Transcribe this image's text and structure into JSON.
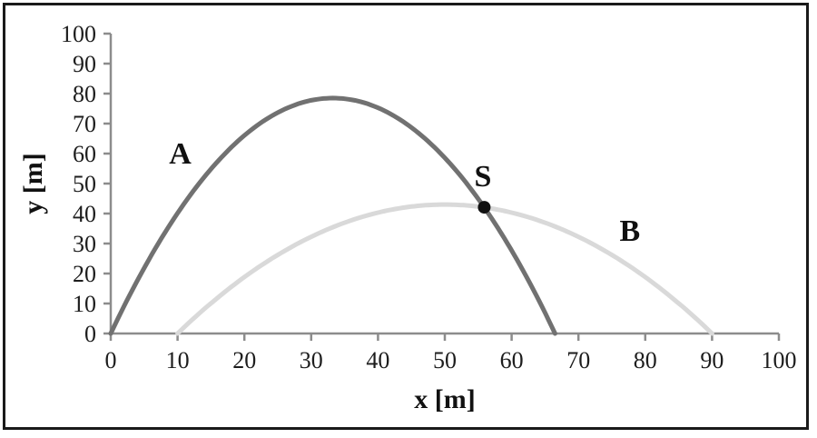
{
  "figure": {
    "background_color": "#ffffff",
    "frame_border_color": "#1a1a1a"
  },
  "chart_data": {
    "type": "line",
    "title": "",
    "xlabel": "x [m]",
    "ylabel": "y [m]",
    "xlim": [
      0,
      100
    ],
    "ylim": [
      0,
      100
    ],
    "x_ticks": [
      0,
      10,
      20,
      30,
      40,
      50,
      60,
      70,
      80,
      90,
      100
    ],
    "y_ticks": [
      0,
      10,
      20,
      30,
      40,
      50,
      60,
      70,
      80,
      90,
      100
    ],
    "grid": false,
    "legend": "none",
    "axis_color": "#8c8c8c",
    "tick_label_color": "#1d1d1d",
    "series": [
      {
        "name": "A",
        "color": "#717171",
        "stroke_width": 5,
        "curve": "parabola",
        "launch_x": 0,
        "land_x": 66.5,
        "apex_x": 33.25,
        "apex_y": 78.5,
        "points": [
          [
            0,
            0
          ],
          [
            5,
            21.8
          ],
          [
            10,
            40.1
          ],
          [
            15,
            54.9
          ],
          [
            20,
            66.0
          ],
          [
            25,
            73.7
          ],
          [
            30,
            77.7
          ],
          [
            33.25,
            78.5
          ],
          [
            35,
            78.3
          ],
          [
            40,
            75.3
          ],
          [
            45,
            68.7
          ],
          [
            50,
            58.6
          ],
          [
            55,
            44.9
          ],
          [
            60,
            27.7
          ],
          [
            65,
            6.9
          ],
          [
            66.5,
            0
          ]
        ]
      },
      {
        "name": "B",
        "color": "#d9d9d9",
        "stroke_width": 5,
        "curve": "parabola",
        "launch_x": 10,
        "land_x": 90,
        "apex_x": 50,
        "apex_y": 43,
        "points": [
          [
            10,
            0
          ],
          [
            15,
            10.1
          ],
          [
            20,
            18.8
          ],
          [
            25,
            26.2
          ],
          [
            30,
            32.3
          ],
          [
            35,
            37.0
          ],
          [
            40,
            40.3
          ],
          [
            45,
            42.3
          ],
          [
            50,
            43.0
          ],
          [
            55,
            42.3
          ],
          [
            60,
            40.3
          ],
          [
            65,
            37.0
          ],
          [
            70,
            32.3
          ],
          [
            75,
            26.2
          ],
          [
            80,
            18.8
          ],
          [
            85,
            10.1
          ],
          [
            90,
            0
          ]
        ]
      }
    ],
    "intersection_point": {
      "label": "S",
      "x": 55.9,
      "y": 42.1,
      "marker": "filled-circle",
      "color": "#111111",
      "radius_px": 7
    },
    "annotations": [
      {
        "text": "A",
        "x": 10.4,
        "y": 60.3
      },
      {
        "text": "S",
        "x": 55.7,
        "y": 52.8
      },
      {
        "text": "B",
        "x": 77.7,
        "y": 34.5
      }
    ]
  }
}
